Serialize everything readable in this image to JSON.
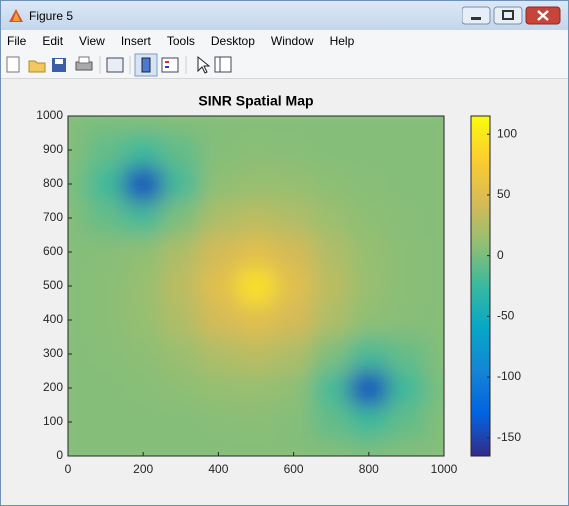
{
  "window": {
    "title": "Figure 5",
    "menu": [
      "File",
      "Edit",
      "View",
      "Insert",
      "Tools",
      "Desktop",
      "Window",
      "Help"
    ]
  },
  "chart_data": {
    "type": "heatmap",
    "title": "SINR Spatial Map",
    "x": [
      0,
      100,
      200,
      300,
      400,
      500,
      600,
      700,
      800,
      900,
      1000
    ],
    "y": [
      0,
      100,
      200,
      300,
      400,
      500,
      600,
      700,
      800,
      900,
      1000
    ],
    "z": [
      [
        5,
        5,
        5,
        5,
        5,
        5,
        5,
        4,
        2,
        4,
        5
      ],
      [
        5,
        5,
        5,
        5,
        6,
        7,
        5,
        -8,
        -22,
        -8,
        4
      ],
      [
        5,
        5,
        6,
        8,
        12,
        13,
        9,
        -19,
        -144,
        -22,
        2
      ],
      [
        5,
        6,
        8,
        15,
        25,
        30,
        24,
        2,
        -19,
        -7,
        4
      ],
      [
        5,
        7,
        12,
        25,
        43,
        53,
        43,
        24,
        9,
        6,
        5
      ],
      [
        5,
        7,
        13,
        30,
        53,
        95,
        53,
        30,
        13,
        7,
        5
      ],
      [
        5,
        6,
        9,
        24,
        43,
        53,
        43,
        25,
        12,
        7,
        5
      ],
      [
        4,
        -7,
        -19,
        2,
        24,
        30,
        25,
        15,
        8,
        6,
        5
      ],
      [
        2,
        -22,
        -144,
        -19,
        9,
        13,
        12,
        8,
        6,
        5,
        5
      ],
      [
        4,
        -8,
        -22,
        -8,
        5,
        7,
        6,
        5,
        5,
        5,
        5
      ],
      [
        4,
        2,
        4,
        5,
        5,
        5,
        5,
        5,
        5,
        5,
        5
      ]
    ],
    "xlim": [
      0,
      1000
    ],
    "ylim": [
      0,
      1000
    ],
    "xticks": [
      0,
      200,
      400,
      600,
      800,
      1000
    ],
    "yticks": [
      0,
      100,
      200,
      300,
      400,
      500,
      600,
      700,
      800,
      900,
      1000
    ],
    "clim": [
      -165,
      115
    ],
    "cticks": [
      -150,
      -100,
      -50,
      0,
      50,
      100
    ],
    "colormap": [
      "#352a87",
      "#0363e1",
      "#1485d4",
      "#06a7c6",
      "#38b99e",
      "#92bf73",
      "#d9ba56",
      "#fcce2e",
      "#f9fb0e"
    ]
  }
}
